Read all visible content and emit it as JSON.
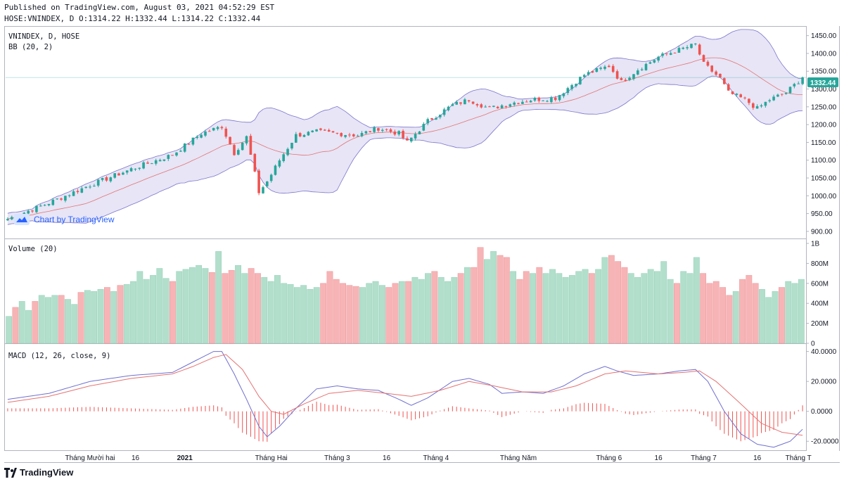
{
  "header": {
    "published": "Published on TradingView.com, August 03, 2021 04:52:29 EST",
    "ohlc": "HOSE:VNINDEX, D O:1314.22 H:1332.44 L:1314.22 C:1332.44"
  },
  "watermark": "Chart by TradingView",
  "footer_logo": "TradingView",
  "colors": {
    "up": "#26a69a",
    "down": "#ef5350",
    "up_vol": "#b2dfcc",
    "down_vol": "#f7b4b6",
    "bb_fill": "#e3e1f5",
    "bb_line": "#7b75cc",
    "bb_mid": "#e57373",
    "macd": "#7070d0",
    "signal": "#e57373",
    "last": "#26a69a"
  },
  "chart_data": [
    {
      "type": "candlestick",
      "legend": [
        "VNINDEX, D, HOSE",
        "BB (20, 2)"
      ],
      "yticks": [
        900,
        950,
        1000,
        1050,
        1100,
        1150,
        1200,
        1250,
        1300,
        1350,
        1400,
        1450
      ],
      "ytick_labels": [
        "900.00",
        "950.00",
        "1000.00",
        "1050.00",
        "1100.00",
        "1150.00",
        "1200.00",
        "1250.00",
        "1300.00",
        "1350.00",
        "1400.00",
        "1450.00"
      ],
      "ylim": [
        880,
        1475
      ],
      "last_price": 1332.44,
      "last_label": "1332.44",
      "anchors": [
        [
          0,
          935
        ],
        [
          10,
          980
        ],
        [
          20,
          1030
        ],
        [
          30,
          1075
        ],
        [
          40,
          1115
        ],
        [
          47,
          1175
        ],
        [
          52,
          1195
        ],
        [
          55,
          1120
        ],
        [
          58,
          1165
        ],
        [
          61,
          1010
        ],
        [
          63,
          1040
        ],
        [
          66,
          1100
        ],
        [
          70,
          1170
        ],
        [
          75,
          1180
        ],
        [
          80,
          1175
        ],
        [
          85,
          1170
        ],
        [
          90,
          1190
        ],
        [
          95,
          1175
        ],
        [
          97,
          1150
        ],
        [
          102,
          1210
        ],
        [
          108,
          1255
        ],
        [
          112,
          1270
        ],
        [
          117,
          1245
        ],
        [
          122,
          1260
        ],
        [
          127,
          1270
        ],
        [
          133,
          1275
        ],
        [
          140,
          1340
        ],
        [
          146,
          1365
        ],
        [
          149,
          1320
        ],
        [
          153,
          1355
        ],
        [
          158,
          1390
        ],
        [
          163,
          1410
        ],
        [
          167,
          1425
        ],
        [
          169,
          1370
        ],
        [
          173,
          1330
        ],
        [
          175,
          1290
        ],
        [
          179,
          1270
        ],
        [
          182,
          1245
        ],
        [
          185,
          1270
        ],
        [
          189,
          1290
        ],
        [
          193,
          1332.44
        ]
      ]
    },
    {
      "type": "bar",
      "legend": "Volume (20)",
      "yticks": [
        0,
        200,
        400,
        600,
        800,
        1000
      ],
      "ytick_labels": [
        "0",
        "200M",
        "400M",
        "600M",
        "800M",
        "1B"
      ],
      "ylim": [
        0,
        1000
      ],
      "values_millions": [
        270,
        360,
        420,
        330,
        420,
        480,
        460,
        480,
        480,
        440,
        390,
        510,
        530,
        520,
        540,
        560,
        520,
        580,
        590,
        620,
        720,
        640,
        680,
        750,
        650,
        620,
        720,
        740,
        760,
        780,
        750,
        710,
        920,
        700,
        730,
        780,
        700,
        750,
        700,
        660,
        620,
        680,
        600,
        590,
        560,
        580,
        540,
        560,
        600,
        720,
        640,
        600,
        580,
        570,
        560,
        600,
        620,
        580,
        560,
        600,
        620,
        620,
        660,
        640,
        700,
        720,
        660,
        620,
        660,
        700,
        760,
        760,
        960,
        840,
        920,
        880,
        860,
        720,
        640,
        720,
        700,
        760,
        700,
        740,
        700,
        660,
        680,
        720,
        740,
        700,
        740,
        860,
        880,
        820,
        760,
        700,
        660,
        700,
        740,
        720,
        820,
        640,
        600,
        720,
        700,
        860,
        700,
        600,
        620,
        560,
        480,
        520,
        640,
        680,
        600,
        540,
        460,
        520,
        560,
        620,
        600,
        640
      ],
      "directions": "mixed up/down per session"
    },
    {
      "type": "line",
      "legend": "MACD (12, 26, close, 9)",
      "yticks": [
        -20,
        0,
        20,
        40
      ],
      "ytick_labels": [
        "-20.0000",
        "0.0000",
        "20.0000",
        "40.0000"
      ],
      "ylim": [
        -26,
        45
      ],
      "series": [
        {
          "name": "MACD",
          "anchors": [
            [
              0,
              8
            ],
            [
              10,
              12
            ],
            [
              20,
              20
            ],
            [
              30,
              24
            ],
            [
              40,
              26
            ],
            [
              45,
              33
            ],
            [
              50,
              40
            ],
            [
              52,
              40
            ],
            [
              55,
              25
            ],
            [
              58,
              8
            ],
            [
              61,
              -10
            ],
            [
              63,
              -17
            ],
            [
              66,
              -10
            ],
            [
              70,
              2
            ],
            [
              75,
              15
            ],
            [
              80,
              17
            ],
            [
              85,
              15
            ],
            [
              90,
              14
            ],
            [
              95,
              8
            ],
            [
              98,
              4
            ],
            [
              102,
              9
            ],
            [
              108,
              20
            ],
            [
              112,
              22
            ],
            [
              117,
              18
            ],
            [
              120,
              12
            ],
            [
              125,
              13
            ],
            [
              130,
              12
            ],
            [
              135,
              17
            ],
            [
              140,
              25
            ],
            [
              145,
              30
            ],
            [
              148,
              27
            ],
            [
              152,
              24
            ],
            [
              158,
              25
            ],
            [
              163,
              27
            ],
            [
              167,
              28
            ],
            [
              170,
              20
            ],
            [
              174,
              0
            ],
            [
              178,
              -15
            ],
            [
              182,
              -22
            ],
            [
              186,
              -24
            ],
            [
              190,
              -20
            ],
            [
              193,
              -12
            ]
          ]
        },
        {
          "name": "Signal",
          "anchors": [
            [
              0,
              6
            ],
            [
              10,
              10
            ],
            [
              20,
              17
            ],
            [
              30,
              22
            ],
            [
              40,
              25
            ],
            [
              45,
              30
            ],
            [
              50,
              36
            ],
            [
              53,
              38
            ],
            [
              57,
              28
            ],
            [
              61,
              10
            ],
            [
              64,
              0
            ],
            [
              67,
              -2
            ],
            [
              72,
              5
            ],
            [
              78,
              12
            ],
            [
              85,
              14
            ],
            [
              92,
              12
            ],
            [
              98,
              10
            ],
            [
              105,
              14
            ],
            [
              112,
              20
            ],
            [
              118,
              17
            ],
            [
              125,
              13
            ],
            [
              132,
              13
            ],
            [
              138,
              17
            ],
            [
              145,
              25
            ],
            [
              150,
              27
            ],
            [
              158,
              25
            ],
            [
              164,
              26
            ],
            [
              168,
              27
            ],
            [
              172,
              20
            ],
            [
              178,
              5
            ],
            [
              183,
              -8
            ],
            [
              188,
              -14
            ],
            [
              193,
              -16
            ]
          ]
        }
      ]
    }
  ],
  "x_axis": {
    "labels": [
      "Tháng Mười hai",
      "16",
      "2021",
      "Tháng Hai",
      "Tháng 3",
      "16",
      "Tháng 4",
      "Tháng Năm",
      "Tháng 6",
      "16",
      "Tháng 7",
      "16",
      "Tháng T"
    ],
    "bold": [
      "2021"
    ]
  }
}
